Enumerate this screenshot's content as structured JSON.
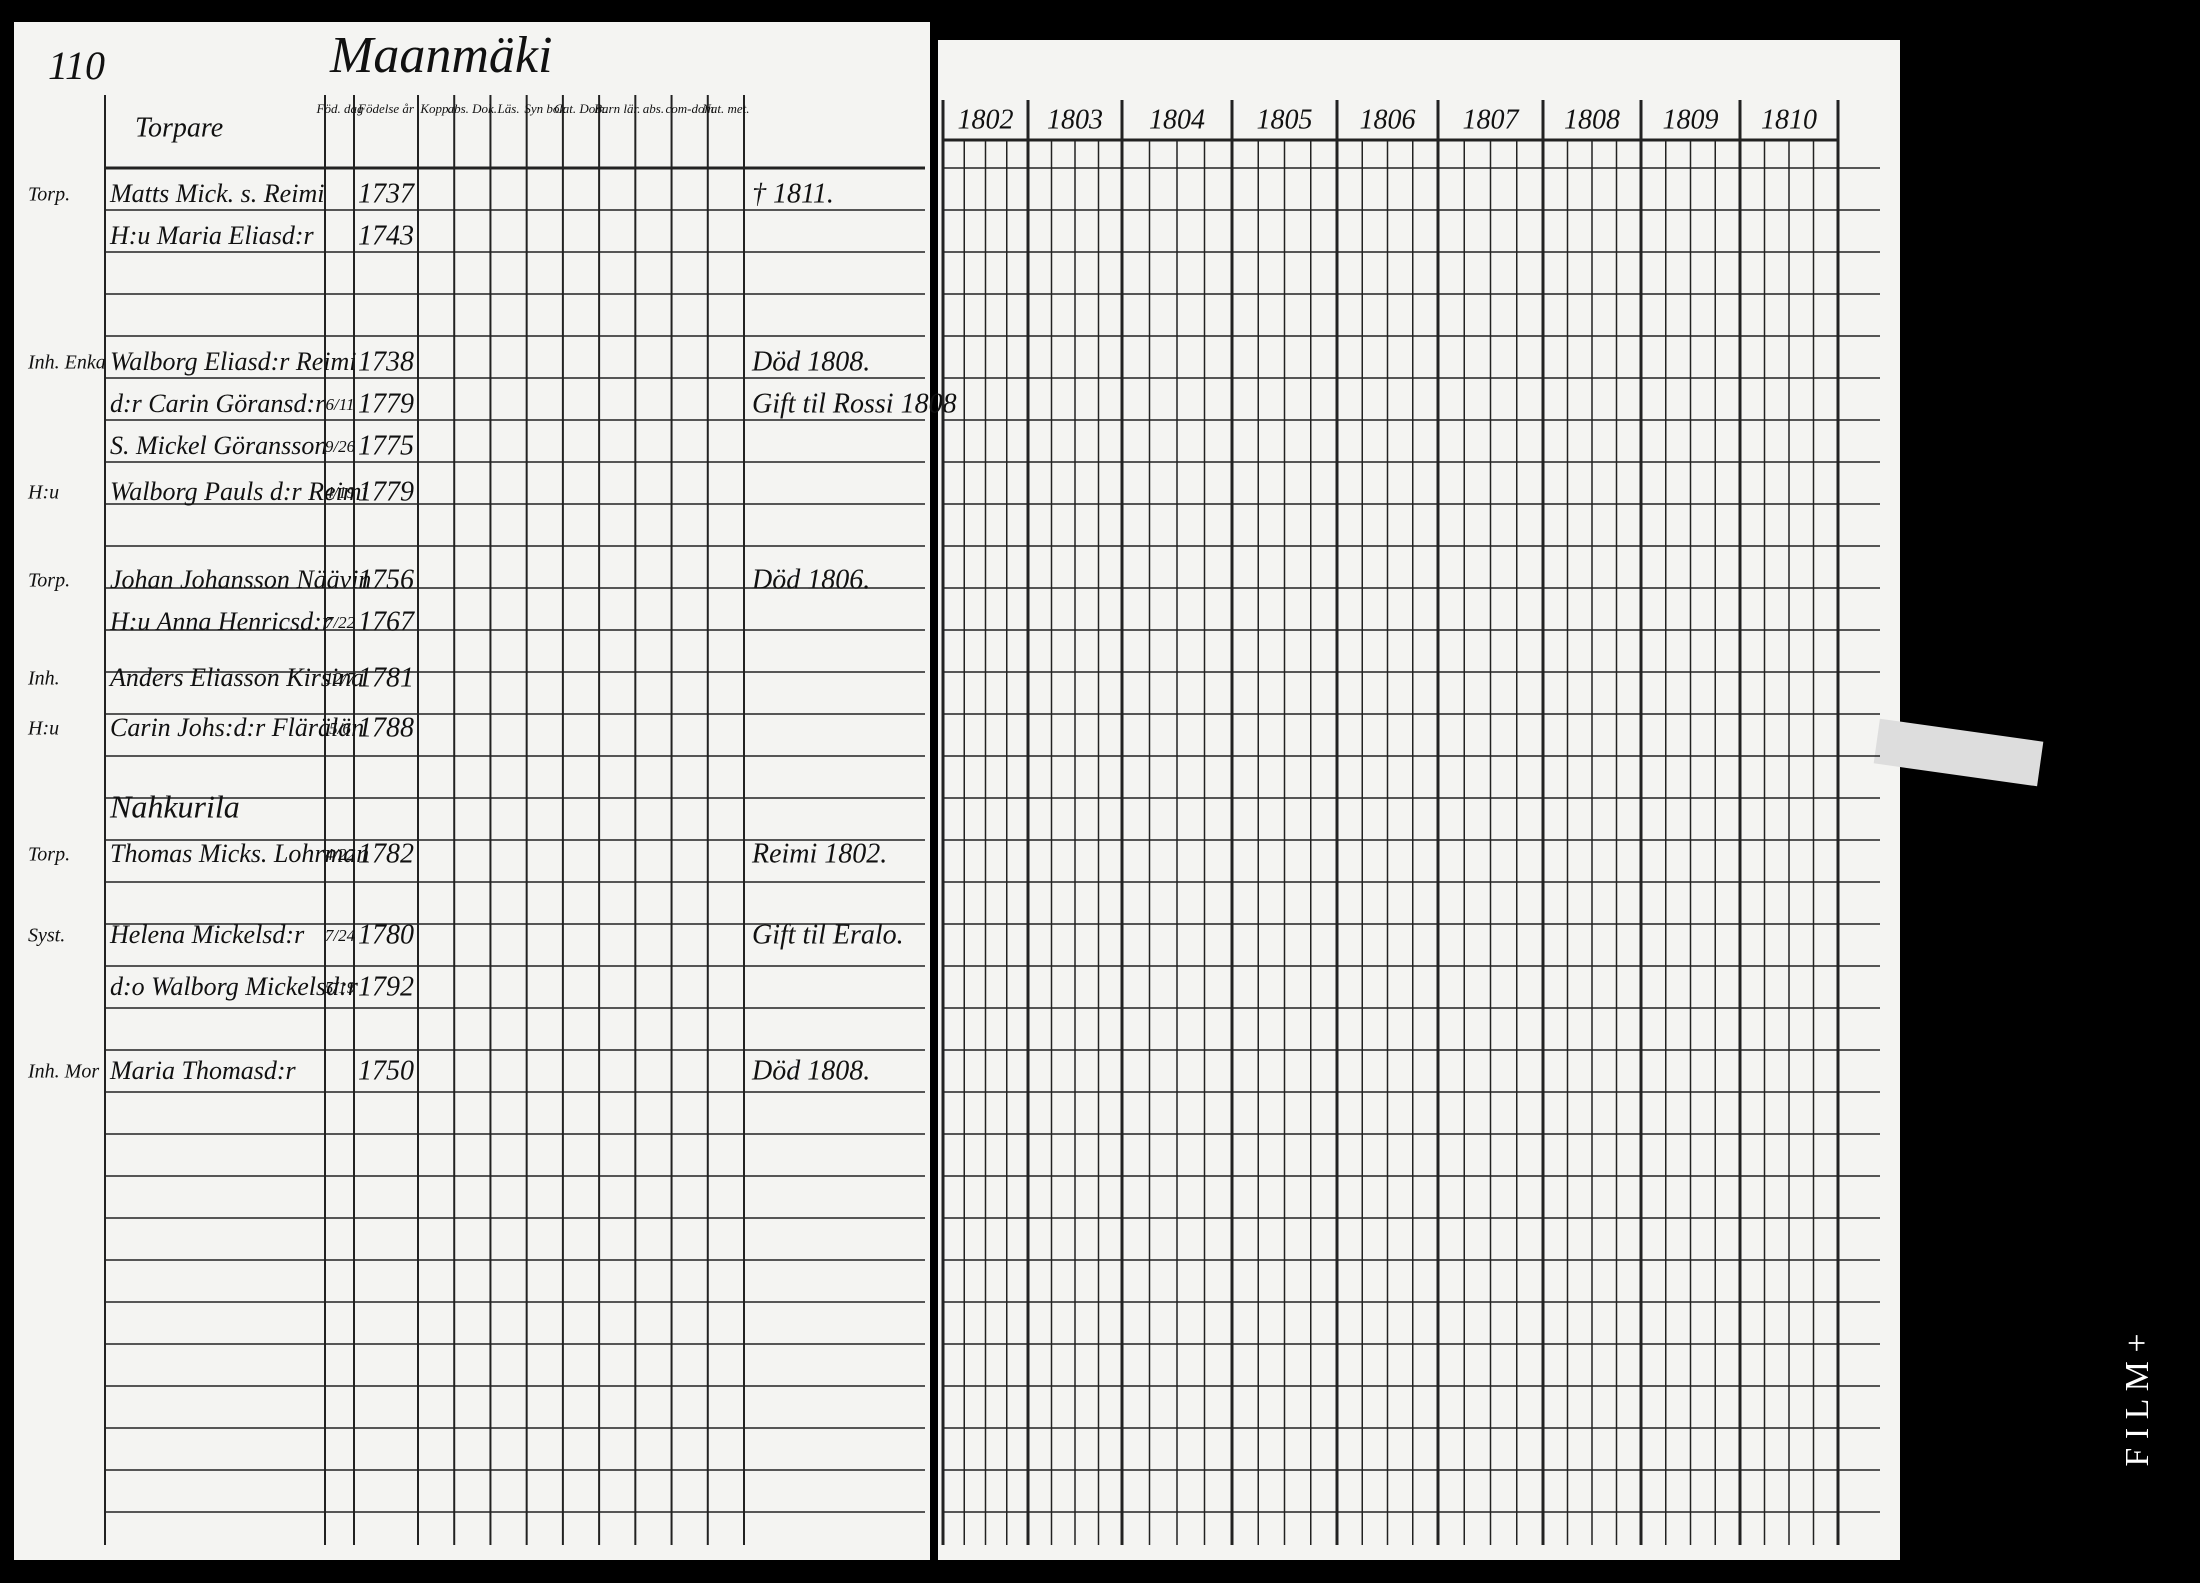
{
  "page": {
    "number": "110",
    "place": "Maanmäki"
  },
  "header": {
    "name_column": "Torpare",
    "columns": [
      "Föd. dag",
      "Födelse år",
      "Kopp.",
      "abs. Dok.",
      "Läs.",
      "Syn bok",
      "Cat. Dom.",
      "Barn lär.",
      "abs.",
      "com-dom",
      "Nat. met."
    ]
  },
  "rows": [
    {
      "relation": "Torp.",
      "name": "Matts Mick. s. Reimi",
      "year": "1737",
      "note": "† 1811."
    },
    {
      "name": "H:u Maria Eliasd:r",
      "year": "1743"
    },
    {
      "relation": "Inh. Enka",
      "name": "Walborg Eliasd:r Reimi",
      "year": "1738",
      "note": "Död 1808."
    },
    {
      "name": "d:r Carin Göransd:r",
      "day": "6/11",
      "year": "1779",
      "note": "Gift til Rossi 1808"
    },
    {
      "name": "S. Mickel Göransson",
      "day": "9/26",
      "year": "1775"
    },
    {
      "relation": "H:u",
      "name": "Walborg Pauls d:r Reimi",
      "day": "4/19",
      "year": "1779"
    },
    {
      "relation": "Torp.",
      "name": "Johan Johansson Näävin",
      "year": "1756",
      "note": "Död 1806."
    },
    {
      "name": "H:u Anna Henricsd:r",
      "day": "7/22",
      "year": "1767"
    },
    {
      "relation": "Inh.",
      "name": "Anders Eliasson Kirsina",
      "day": "12/7",
      "year": "1781"
    },
    {
      "relation": "H:u",
      "name": "Carin Johs:d:r Flärälän",
      "day": "5/6",
      "year": "1788"
    },
    {
      "section": "Nahkurila"
    },
    {
      "relation": "Torp.",
      "name": "Thomas Micks. Lohrman",
      "day": "4/22",
      "year": "1782",
      "note": "Reimi 1802."
    },
    {
      "relation": "Syst.",
      "name": "Helena Mickelsd:r",
      "day": "7/24",
      "year": "1780",
      "note": "Gift til Eralo."
    },
    {
      "name": "d:o Walborg Mickelsd:r",
      "day": "5/19",
      "year": "1792"
    },
    {
      "relation": "Inh. Mor",
      "name": "Maria Thomasd:r",
      "year": "1750",
      "note": "Död 1808."
    }
  ],
  "years": [
    "1802",
    "1803",
    "1804",
    "1805",
    "1806",
    "1807",
    "1808",
    "1809",
    "1810"
  ],
  "film": "F I L M +"
}
